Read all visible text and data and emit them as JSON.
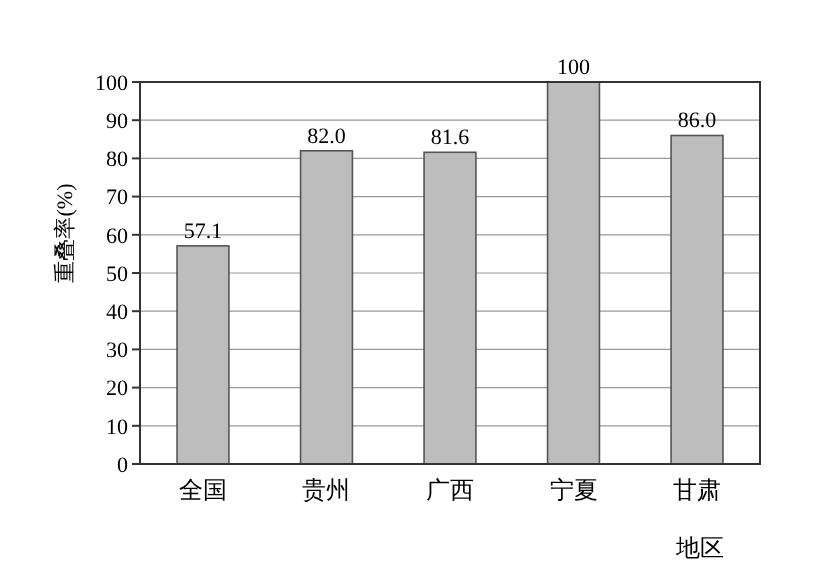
{
  "chart_data": {
    "type": "bar",
    "ylabel": "重叠率(%)",
    "xlabel": "地区",
    "categories": [
      "全国",
      "贵州",
      "广西",
      "宁夏",
      "甘肃"
    ],
    "values": [
      57.1,
      82.0,
      81.6,
      100,
      86.0
    ],
    "value_labels": [
      "57.1",
      "82.0",
      "81.6",
      "100",
      "86.0"
    ],
    "color": "#bdbdbd",
    "ylim": [
      0,
      100
    ],
    "yticks": [
      0,
      10,
      20,
      30,
      40,
      50,
      60,
      70,
      80,
      90,
      100
    ],
    "grid": "y"
  }
}
